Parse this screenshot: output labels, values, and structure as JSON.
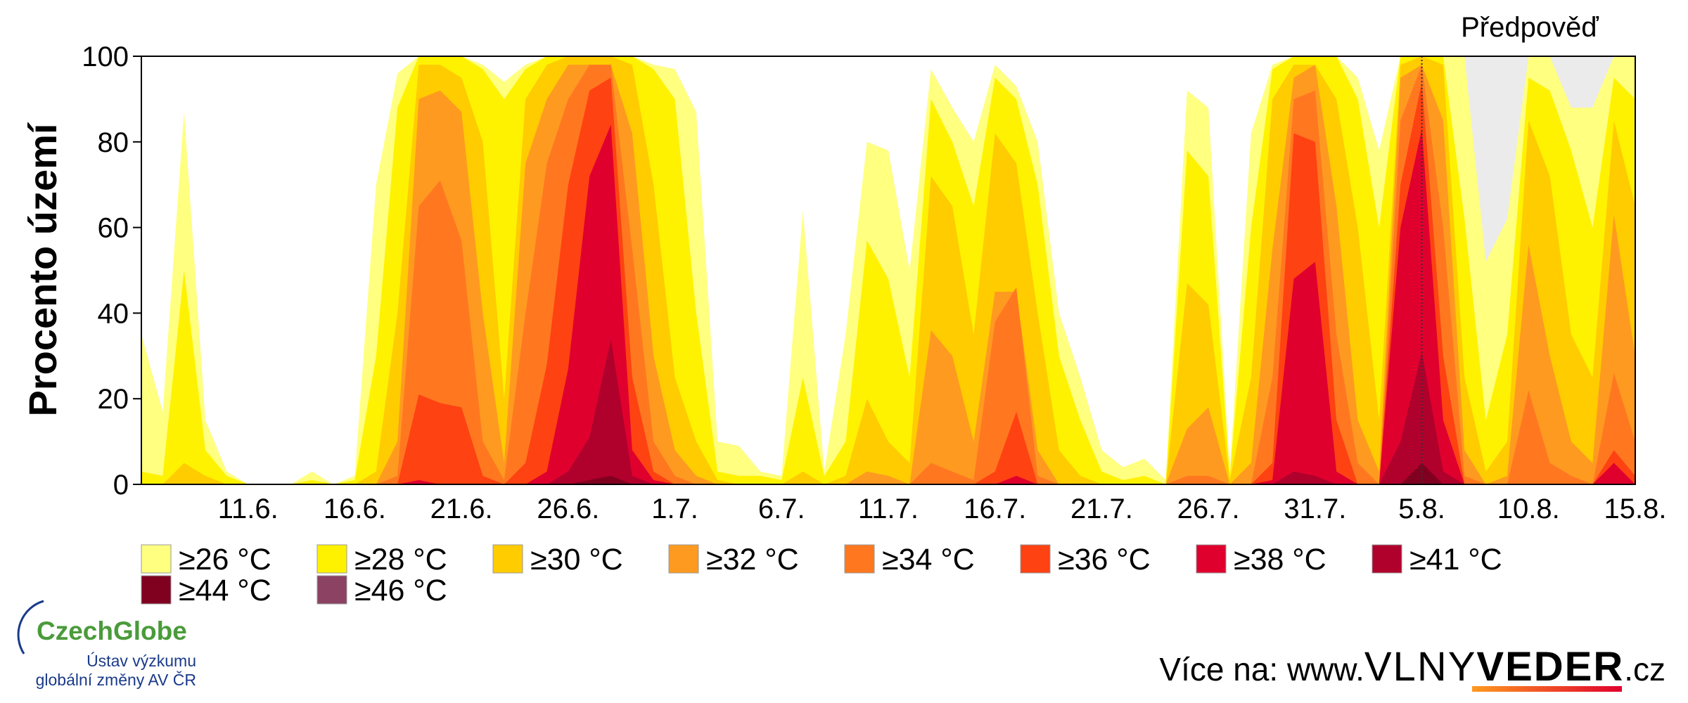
{
  "chart_data": {
    "type": "area",
    "y_label": "Procento území",
    "forecast_label": "Předpověď",
    "forecast_start": 60,
    "forecast_color": "#ebebeb",
    "categories": [
      null,
      null,
      null,
      null,
      null,
      "11.6.",
      null,
      null,
      null,
      null,
      "16.6.",
      null,
      null,
      null,
      null,
      "21.6.",
      null,
      null,
      null,
      null,
      "26.6.",
      null,
      null,
      null,
      null,
      "1.7.",
      null,
      null,
      null,
      null,
      "6.7.",
      null,
      null,
      null,
      null,
      "11.7.",
      null,
      null,
      null,
      null,
      "16.7.",
      null,
      null,
      null,
      null,
      "21.7.",
      null,
      null,
      null,
      null,
      "26.7.",
      null,
      null,
      null,
      null,
      "31.7.",
      null,
      null,
      null,
      null,
      "5.8.",
      null,
      null,
      null,
      null,
      "10.8.",
      null,
      null,
      null,
      null,
      "15.8."
    ],
    "ylim": [
      0,
      100
    ],
    "yticks": [
      0,
      20,
      40,
      60,
      80,
      100
    ],
    "series": [
      {
        "name": "≥26 °C",
        "color": "#ffff80",
        "values": [
          35,
          17,
          87,
          15,
          3,
          0,
          0,
          0,
          3,
          0,
          2,
          70,
          96,
          100,
          100,
          100,
          98,
          94,
          98,
          100,
          100,
          100,
          100,
          100,
          98,
          97,
          87,
          10,
          9,
          3,
          2,
          64,
          3,
          35,
          80,
          78,
          50,
          97,
          88,
          80,
          98,
          93,
          80,
          40,
          25,
          8,
          4,
          6,
          1,
          92,
          88,
          3,
          82,
          98,
          100,
          100,
          100,
          95,
          78,
          100,
          100,
          100,
          100,
          52,
          62,
          100,
          100,
          88,
          88,
          100,
          100
        ]
      },
      {
        "name": "≥28 °C",
        "color": "#fff200",
        "values": [
          3,
          2,
          50,
          8,
          2,
          0,
          0,
          0,
          1,
          0,
          1,
          30,
          88,
          100,
          100,
          100,
          97,
          90,
          97,
          100,
          100,
          100,
          100,
          100,
          97,
          90,
          40,
          3,
          2,
          2,
          1,
          25,
          2,
          10,
          57,
          48,
          25,
          90,
          80,
          65,
          95,
          90,
          70,
          30,
          15,
          3,
          1,
          2,
          0,
          78,
          72,
          2,
          60,
          97,
          100,
          100,
          100,
          90,
          60,
          100,
          100,
          100,
          62,
          15,
          35,
          95,
          92,
          78,
          60,
          95,
          90
        ]
      },
      {
        "name": "≥30 °C",
        "color": "#ffcc00",
        "values": [
          0,
          0,
          5,
          2,
          0,
          0,
          0,
          0,
          0,
          0,
          0,
          3,
          40,
          98,
          98,
          95,
          80,
          20,
          90,
          98,
          100,
          100,
          100,
          98,
          70,
          25,
          10,
          1,
          0,
          0,
          0,
          3,
          0,
          2,
          20,
          10,
          5,
          72,
          65,
          35,
          82,
          75,
          40,
          8,
          2,
          0,
          0,
          0,
          0,
          47,
          42,
          1,
          25,
          90,
          98,
          98,
          90,
          60,
          15,
          98,
          100,
          98,
          25,
          3,
          10,
          85,
          72,
          35,
          25,
          85,
          65
        ]
      },
      {
        "name": "≥32 °C",
        "color": "#ff9a20",
        "values": [
          0,
          0,
          0,
          0,
          0,
          0,
          0,
          0,
          0,
          0,
          0,
          0,
          10,
          90,
          92,
          87,
          40,
          5,
          75,
          90,
          98,
          98,
          98,
          82,
          30,
          8,
          2,
          0,
          0,
          0,
          0,
          0,
          0,
          0,
          3,
          2,
          0,
          36,
          30,
          10,
          45,
          45,
          8,
          0,
          0,
          0,
          0,
          0,
          0,
          13,
          18,
          0,
          5,
          55,
          95,
          98,
          65,
          15,
          3,
          95,
          98,
          85,
          8,
          0,
          2,
          56,
          30,
          10,
          5,
          63,
          30
        ]
      },
      {
        "name": "≥34 °C",
        "color": "#ff7820",
        "values": [
          0,
          0,
          0,
          0,
          0,
          0,
          0,
          0,
          0,
          0,
          0,
          0,
          2,
          65,
          71,
          57,
          10,
          1,
          40,
          75,
          90,
          98,
          98,
          55,
          10,
          2,
          0,
          0,
          0,
          0,
          0,
          0,
          0,
          0,
          0,
          0,
          0,
          5,
          3,
          1,
          38,
          46,
          2,
          0,
          0,
          0,
          0,
          0,
          0,
          2,
          2,
          0,
          0,
          25,
          90,
          92,
          35,
          5,
          0,
          85,
          98,
          60,
          2,
          0,
          0,
          22,
          5,
          2,
          0,
          26,
          10
        ]
      },
      {
        "name": "≥36 °C",
        "color": "#ff4212",
        "values": [
          0,
          0,
          0,
          0,
          0,
          0,
          0,
          0,
          0,
          0,
          0,
          0,
          0,
          21,
          19,
          18,
          2,
          0,
          5,
          28,
          70,
          92,
          95,
          25,
          3,
          0,
          0,
          0,
          0,
          0,
          0,
          0,
          0,
          0,
          0,
          0,
          0,
          0,
          0,
          0,
          3,
          17,
          0,
          0,
          0,
          0,
          0,
          0,
          0,
          0,
          0,
          0,
          0,
          5,
          82,
          80,
          15,
          0,
          0,
          70,
          94,
          30,
          0,
          0,
          0,
          0,
          0,
          0,
          0,
          8,
          2
        ]
      },
      {
        "name": "≥38 °C",
        "color": "#e0002e",
        "values": [
          0,
          0,
          0,
          0,
          0,
          0,
          0,
          0,
          0,
          0,
          0,
          0,
          0,
          1,
          0,
          0,
          0,
          0,
          0,
          3,
          27,
          72,
          84,
          8,
          1,
          0,
          0,
          0,
          0,
          0,
          0,
          0,
          0,
          0,
          0,
          0,
          0,
          0,
          0,
          0,
          0,
          2,
          0,
          0,
          0,
          0,
          0,
          0,
          0,
          0,
          0,
          0,
          0,
          1,
          48,
          52,
          3,
          0,
          0,
          60,
          83,
          15,
          0,
          0,
          0,
          0,
          0,
          0,
          0,
          5,
          0
        ]
      },
      {
        "name": "≥41 °C",
        "color": "#b0002c",
        "values": [
          0,
          0,
          0,
          0,
          0,
          0,
          0,
          0,
          0,
          0,
          0,
          0,
          0,
          0,
          0,
          0,
          0,
          0,
          0,
          0,
          3,
          11,
          34,
          2,
          0,
          0,
          0,
          0,
          0,
          0,
          0,
          0,
          0,
          0,
          0,
          0,
          0,
          0,
          0,
          0,
          0,
          0,
          0,
          0,
          0,
          0,
          0,
          0,
          0,
          0,
          0,
          0,
          0,
          0,
          3,
          2,
          0,
          0,
          0,
          10,
          31,
          3,
          0,
          0,
          0,
          0,
          0,
          0,
          0,
          0,
          0
        ]
      },
      {
        "name": "≥44 °C",
        "color": "#800020",
        "values": [
          0,
          0,
          0,
          0,
          0,
          0,
          0,
          0,
          0,
          0,
          0,
          0,
          0,
          0,
          0,
          0,
          0,
          0,
          0,
          0,
          0,
          1,
          2,
          0,
          0,
          0,
          0,
          0,
          0,
          0,
          0,
          0,
          0,
          0,
          0,
          0,
          0,
          0,
          0,
          0,
          0,
          0,
          0,
          0,
          0,
          0,
          0,
          0,
          0,
          0,
          0,
          0,
          0,
          0,
          0,
          0,
          0,
          0,
          0,
          0,
          5,
          0,
          0,
          0,
          0,
          0,
          0,
          0,
          0,
          0,
          0
        ]
      },
      {
        "name": "≥46 °C",
        "color": "#8c4262",
        "values": [
          0,
          0,
          0,
          0,
          0,
          0,
          0,
          0,
          0,
          0,
          0,
          0,
          0,
          0,
          0,
          0,
          0,
          0,
          0,
          0,
          0,
          0,
          0,
          0,
          0,
          0,
          0,
          0,
          0,
          0,
          0,
          0,
          0,
          0,
          0,
          0,
          0,
          0,
          0,
          0,
          0,
          0,
          0,
          0,
          0,
          0,
          0,
          0,
          0,
          0,
          0,
          0,
          0,
          0,
          0,
          0,
          0,
          0,
          0,
          0,
          0,
          0,
          0,
          0,
          0,
          0,
          0,
          0,
          0,
          0,
          0
        ]
      }
    ]
  },
  "logo": {
    "name": "CzechGlobe",
    "line1": "Ústav výzkumu",
    "line2": "globální změny AV ČR"
  },
  "footer": {
    "prefix": "Více na: www.",
    "part1": "VLNY",
    "part2": "VEDER",
    "suffix": ".cz"
  }
}
